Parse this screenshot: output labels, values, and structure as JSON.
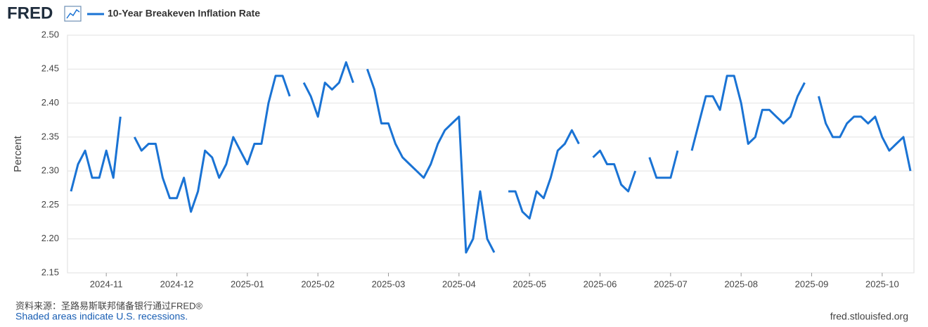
{
  "logo": "FRED",
  "source": "资料来源：圣路易斯联邦储备银行通过FRED®",
  "note": "Shaded areas indicate U.S. recessions.",
  "site": "fred.stlouisfed.org",
  "chart_data": {
    "type": "line",
    "y_label": "Percent",
    "legend": "top-left",
    "grid": true,
    "categories": [
      null,
      null,
      null,
      null,
      null,
      "2024-11",
      null,
      null,
      null,
      null,
      null,
      null,
      null,
      null,
      null,
      "2024-12",
      null,
      null,
      null,
      null,
      null,
      null,
      null,
      null,
      null,
      "2025-01",
      null,
      null,
      null,
      null,
      null,
      null,
      null,
      null,
      null,
      "2025-02",
      null,
      null,
      null,
      null,
      null,
      null,
      null,
      null,
      null,
      "2025-03",
      null,
      null,
      null,
      null,
      null,
      null,
      null,
      null,
      null,
      "2025-04",
      null,
      null,
      null,
      null,
      null,
      null,
      null,
      null,
      null,
      "2025-05",
      null,
      null,
      null,
      null,
      null,
      null,
      null,
      null,
      null,
      "2025-06",
      null,
      null,
      null,
      null,
      null,
      null,
      null,
      null,
      null,
      "2025-07",
      null,
      null,
      null,
      null,
      null,
      null,
      null,
      null,
      null,
      "2025-08",
      null,
      null,
      null,
      null,
      null,
      null,
      null,
      null,
      null,
      "2025-09",
      null,
      null,
      null,
      null,
      null,
      null,
      null,
      null,
      null,
      "2025-10",
      null,
      null,
      null,
      null
    ],
    "series": [
      {
        "name": "10-Year Breakeven Inflation Rate",
        "color": "#1a73d4",
        "values": [
          2.27,
          2.31,
          2.33,
          2.29,
          2.29,
          2.33,
          2.29,
          2.38,
          null,
          2.35,
          2.33,
          2.34,
          2.34,
          2.29,
          2.26,
          2.26,
          2.29,
          2.24,
          2.27,
          2.33,
          2.32,
          2.29,
          2.31,
          2.35,
          2.33,
          2.31,
          2.34,
          2.34,
          2.4,
          2.44,
          2.44,
          2.41,
          null,
          2.43,
          2.41,
          2.38,
          2.43,
          2.42,
          2.43,
          2.46,
          2.43,
          null,
          2.45,
          2.42,
          2.37,
          2.37,
          2.34,
          2.32,
          2.31,
          2.3,
          2.29,
          2.31,
          2.34,
          2.36,
          2.37,
          2.38,
          2.18,
          2.2,
          2.27,
          2.2,
          2.18,
          null,
          2.27,
          2.27,
          2.24,
          2.23,
          2.27,
          2.26,
          2.29,
          2.33,
          2.34,
          2.36,
          2.34,
          null,
          2.32,
          2.33,
          2.31,
          2.31,
          2.28,
          2.27,
          2.3,
          null,
          2.32,
          2.29,
          2.29,
          2.29,
          2.33,
          null,
          2.33,
          2.37,
          2.41,
          2.41,
          2.39,
          2.44,
          2.44,
          2.4,
          2.34,
          2.35,
          2.39,
          2.39,
          2.38,
          2.37,
          2.38,
          2.41,
          2.43,
          null,
          2.41,
          2.37,
          2.35,
          2.35,
          2.37,
          2.38,
          2.38,
          2.37,
          2.38,
          2.35,
          2.33,
          2.34,
          2.35,
          2.3
        ]
      }
    ],
    "ylim": [
      2.15,
      2.5
    ],
    "yticks": [
      {
        "value": 2.15,
        "label": "2.15"
      },
      {
        "value": 2.2,
        "label": "2.20"
      },
      {
        "value": 2.25,
        "label": "2.25"
      },
      {
        "value": 2.3,
        "label": "2.30"
      },
      {
        "value": 2.35,
        "label": "2.35"
      },
      {
        "value": 2.4,
        "label": "2.40"
      },
      {
        "value": 2.45,
        "label": "2.45"
      },
      {
        "value": 2.5,
        "label": "2.50"
      }
    ]
  }
}
